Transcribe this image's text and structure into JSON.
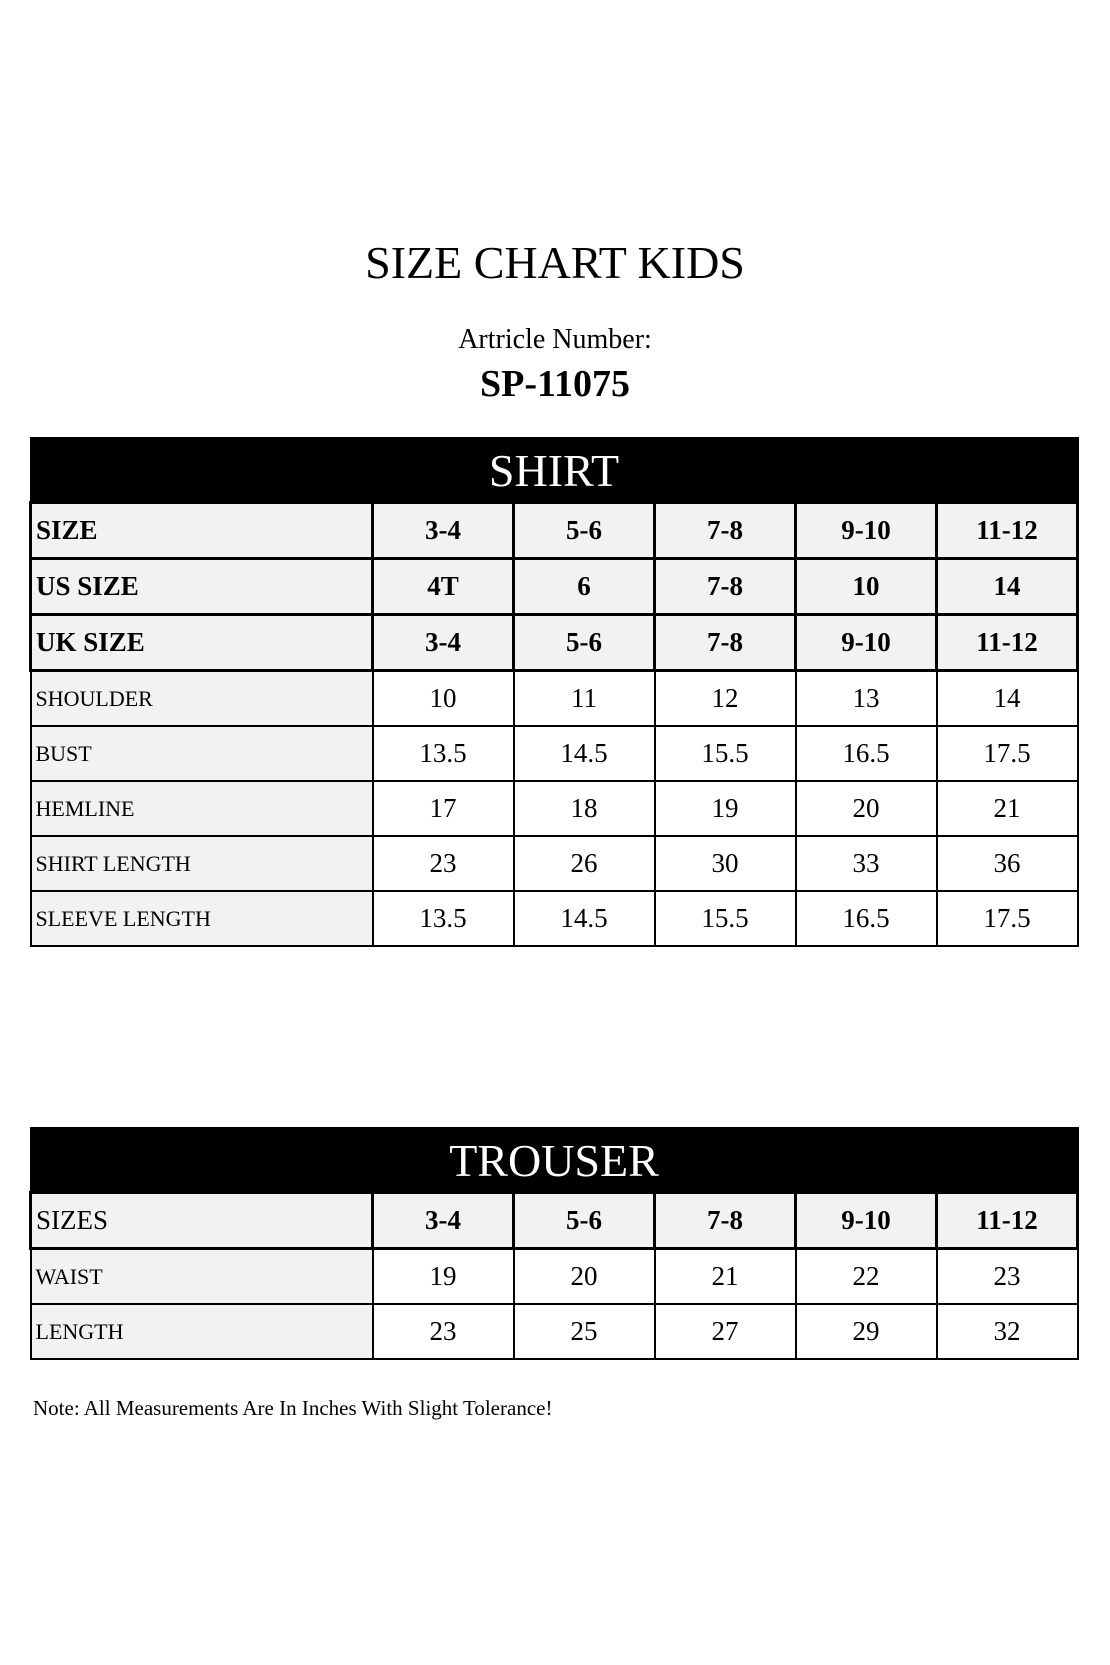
{
  "title": "SIZE CHART KIDS",
  "article_label": "Artricle Number:",
  "article_number": "SP-11075",
  "shirt": {
    "heading": "SHIRT",
    "header_rows": [
      {
        "label": "SIZE",
        "values": [
          "3-4",
          "5-6",
          "7-8",
          "9-10",
          "11-12"
        ]
      },
      {
        "label": "US SIZE",
        "values": [
          "4T",
          "6",
          "7-8",
          "10",
          "14"
        ]
      },
      {
        "label": "UK SIZE",
        "values": [
          "3-4",
          "5-6",
          "7-8",
          "9-10",
          "11-12"
        ]
      }
    ],
    "rows": [
      {
        "label": "SHOULDER",
        "values": [
          "10",
          "11",
          "12",
          "13",
          "14"
        ]
      },
      {
        "label": "BUST",
        "values": [
          "13.5",
          "14.5",
          "15.5",
          "16.5",
          "17.5"
        ]
      },
      {
        "label": "HEMLINE",
        "values": [
          "17",
          "18",
          "19",
          "20",
          "21"
        ]
      },
      {
        "label": "SHIRT LENGTH",
        "values": [
          "23",
          "26",
          "30",
          "33",
          "36"
        ]
      },
      {
        "label": "SLEEVE LENGTH",
        "values": [
          "13.5",
          "14.5",
          "15.5",
          "16.5",
          "17.5"
        ]
      }
    ]
  },
  "trouser": {
    "heading": "TROUSER",
    "header_rows": [
      {
        "label": "SIZES",
        "values": [
          "3-4",
          "5-6",
          "7-8",
          "9-10",
          "11-12"
        ]
      }
    ],
    "rows": [
      {
        "label": "WAIST",
        "values": [
          "19",
          "20",
          "21",
          "22",
          "23"
        ]
      },
      {
        "label": "LENGTH",
        "values": [
          "23",
          "25",
          "27",
          "29",
          "32"
        ]
      }
    ]
  },
  "note": "Note: All Measurements Are In Inches With Slight Tolerance!"
}
